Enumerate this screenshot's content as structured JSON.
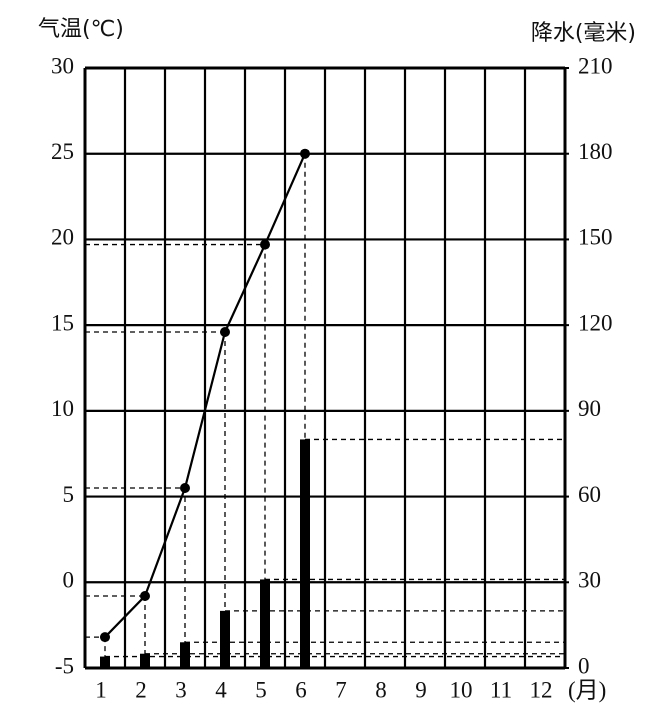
{
  "chart_data": {
    "type": "combo",
    "y_label": "气温(℃)",
    "y2_label": "降水(毫米)",
    "x_label": "(月)",
    "categories": [
      "1",
      "2",
      "3",
      "4",
      "5",
      "6",
      "7",
      "8",
      "9",
      "10",
      "11",
      "12"
    ],
    "series": [
      {
        "type": "line",
        "axis": "y",
        "color": "#000000",
        "values": [
          -3.2,
          -0.8,
          5.5,
          14.6,
          19.7,
          25,
          null,
          null,
          null,
          null,
          null,
          null
        ]
      },
      {
        "type": "bar",
        "axis": "y2",
        "color": "#000000",
        "values": [
          4,
          5,
          9,
          20,
          31,
          80,
          null,
          null,
          null,
          null,
          null,
          null
        ]
      }
    ],
    "ylim": [
      -5,
      30
    ],
    "yticks": [
      -5,
      0,
      5,
      10,
      15,
      20,
      25,
      30
    ],
    "y2lim": [
      0,
      210
    ],
    "y2ticks": [
      0,
      30,
      60,
      90,
      120,
      150,
      180,
      210
    ],
    "grid": true
  }
}
